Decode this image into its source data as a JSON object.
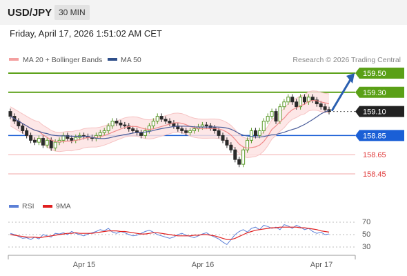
{
  "header": {
    "symbol": "USD/JPY",
    "timeframe": "30 MIN"
  },
  "datetime": "Friday, April 17, 2026 1:51:02 AM CET",
  "legend": {
    "ma20": "MA 20 + Bollinger Bands",
    "ma50": "MA 50"
  },
  "credit": "Research © 2026 Trading Central",
  "colors": {
    "green": "#5aa017",
    "blue": "#1a5fd6",
    "red": "#e03a3a",
    "pink": "#f4b6b6",
    "band": "#fde3e3",
    "ma20": "#f08a8a",
    "ma50": "#4a5d9a",
    "candle": "#2a2a2a",
    "candle_up": "#5a9a2a"
  },
  "chart_data": [
    {
      "type": "candlestick",
      "x_labels": [
        "Apr 15",
        "Apr 16",
        "Apr 17"
      ],
      "levels": [
        {
          "value": 159.5,
          "label": "159.50",
          "style": "green-resistance"
        },
        {
          "value": 159.3,
          "label": "159.30",
          "style": "green-resistance"
        },
        {
          "value": 159.1,
          "label": "159.10",
          "style": "current-price"
        },
        {
          "value": 158.85,
          "label": "158.85",
          "style": "blue-pivot"
        },
        {
          "value": 158.65,
          "label": "158.65",
          "style": "red-support"
        },
        {
          "value": 158.45,
          "label": "158.45",
          "style": "red-support"
        }
      ],
      "projection": {
        "from": 159.1,
        "to": 159.5,
        "direction": "up"
      },
      "series": [
        {
          "name": "MA 20 + Bollinger Bands"
        },
        {
          "name": "MA 50"
        }
      ],
      "closes": [
        159.05,
        159.0,
        158.95,
        158.9,
        158.85,
        158.8,
        158.78,
        158.82,
        158.75,
        158.8,
        158.72,
        158.78,
        158.8,
        158.85,
        158.82,
        158.8,
        158.83,
        158.85,
        158.84,
        158.83,
        158.82,
        158.85,
        158.88,
        158.9,
        158.95,
        159.0,
        158.98,
        158.96,
        158.95,
        158.92,
        158.9,
        158.88,
        158.85,
        158.9,
        158.95,
        159.0,
        159.05,
        159.02,
        159.0,
        158.98,
        158.95,
        158.92,
        158.9,
        158.88,
        158.9,
        158.92,
        158.94,
        158.96,
        158.95,
        158.93,
        158.9,
        158.85,
        158.8,
        158.75,
        158.7,
        158.6,
        158.55,
        158.7,
        158.8,
        158.9,
        158.85,
        158.9,
        159.0,
        159.05,
        159.1,
        159.0,
        159.15,
        159.2,
        159.25,
        159.2,
        159.15,
        159.25,
        159.2,
        159.25,
        159.22,
        159.18,
        159.15,
        159.12,
        159.1
      ]
    },
    {
      "type": "line",
      "series": [
        {
          "name": "RSI"
        },
        {
          "name": "9MA"
        }
      ],
      "yticks": [
        "70",
        "50",
        "30"
      ],
      "rsi": [
        52,
        50,
        47,
        44,
        45,
        42,
        46,
        43,
        50,
        48,
        46,
        52,
        51,
        53,
        50,
        55,
        52,
        50,
        48,
        51,
        53,
        55,
        58,
        56,
        60,
        54,
        52,
        55,
        53,
        50,
        48,
        49,
        52,
        55,
        57,
        54,
        50,
        48,
        46,
        44,
        46,
        50,
        52,
        49,
        47,
        45,
        48,
        51,
        53,
        49,
        46,
        43,
        38,
        34,
        42,
        50,
        55,
        58,
        54,
        60,
        62,
        58,
        65,
        63,
        60,
        62,
        58,
        66,
        64,
        60,
        65,
        62,
        58,
        60,
        55,
        52,
        54,
        50,
        51
      ],
      "ma9": [
        50,
        49,
        48,
        47,
        46,
        46,
        46,
        45,
        46,
        47,
        48,
        49,
        50,
        51,
        52,
        52,
        53,
        52,
        52,
        52,
        52,
        53,
        54,
        55,
        56,
        56,
        56,
        55,
        55,
        54,
        53,
        52,
        51,
        51,
        52,
        53,
        53,
        52,
        51,
        50,
        49,
        48,
        48,
        48,
        48,
        49,
        49,
        50,
        50,
        49,
        48,
        46,
        44,
        42,
        42,
        44,
        47,
        50,
        53,
        55,
        57,
        58,
        59,
        60,
        61,
        61,
        62,
        62,
        62,
        62,
        62,
        61,
        61,
        60,
        59,
        58,
        56,
        55,
        54
      ]
    }
  ]
}
